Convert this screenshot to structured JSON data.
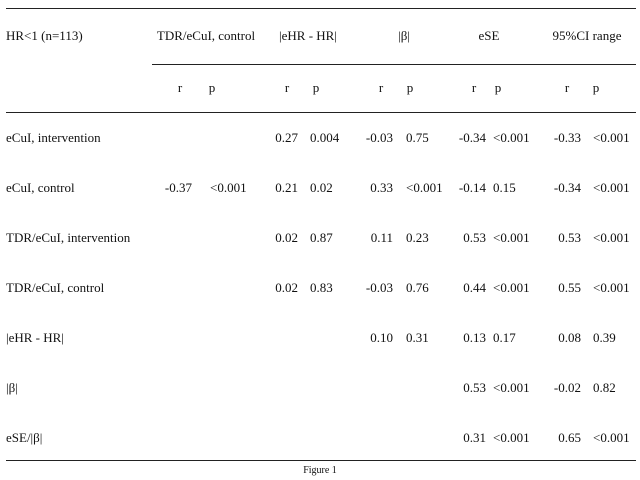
{
  "table": {
    "corner_label": "HR<1 (n=113)",
    "columns": [
      {
        "header": "TDR/eCuI, control",
        "sub": [
          "r",
          "p"
        ]
      },
      {
        "header": "|eHR - HR|",
        "sub": [
          "r",
          "p"
        ]
      },
      {
        "header": "|β|",
        "sub": [
          "r",
          "p"
        ]
      },
      {
        "header": "eSE",
        "sub": [
          "r",
          "p"
        ]
      },
      {
        "header": "95%CI range",
        "sub": [
          "r",
          "p"
        ]
      }
    ],
    "rows": [
      {
        "label": "eCuI, intervention",
        "cells": [
          "",
          "",
          "0.27",
          "0.004",
          "-0.03",
          "0.75",
          "-0.34",
          "<0.001",
          "-0.33",
          "<0.001"
        ]
      },
      {
        "label": "eCuI, control",
        "cells": [
          "-0.37",
          "<0.001",
          "0.21",
          "0.02",
          "0.33",
          "<0.001",
          "-0.14",
          "0.15",
          "-0.34",
          "<0.001"
        ]
      },
      {
        "label": "TDR/eCuI, intervention",
        "cells": [
          "",
          "",
          "0.02",
          "0.87",
          "0.11",
          "0.23",
          "0.53",
          "<0.001",
          "0.53",
          "<0.001"
        ]
      },
      {
        "label": "TDR/eCuI, control",
        "cells": [
          "",
          "",
          "0.02",
          "0.83",
          "-0.03",
          "0.76",
          "0.44",
          "<0.001",
          "0.55",
          "<0.001"
        ]
      },
      {
        "label": "|eHR - HR|",
        "cells": [
          "",
          "",
          "",
          "",
          "0.10",
          "0.31",
          "0.13",
          "0.17",
          "0.08",
          "0.39"
        ]
      },
      {
        "label": "|β|",
        "cells": [
          "",
          "",
          "",
          "",
          "",
          "",
          "0.53",
          "<0.001",
          "-0.02",
          "0.82"
        ]
      },
      {
        "label": "eSE/|β|",
        "cells": [
          "",
          "",
          "",
          "",
          "",
          "",
          "0.31",
          "<0.001",
          "0.65",
          "<0.001"
        ]
      }
    ]
  },
  "caption": "Figure 1"
}
